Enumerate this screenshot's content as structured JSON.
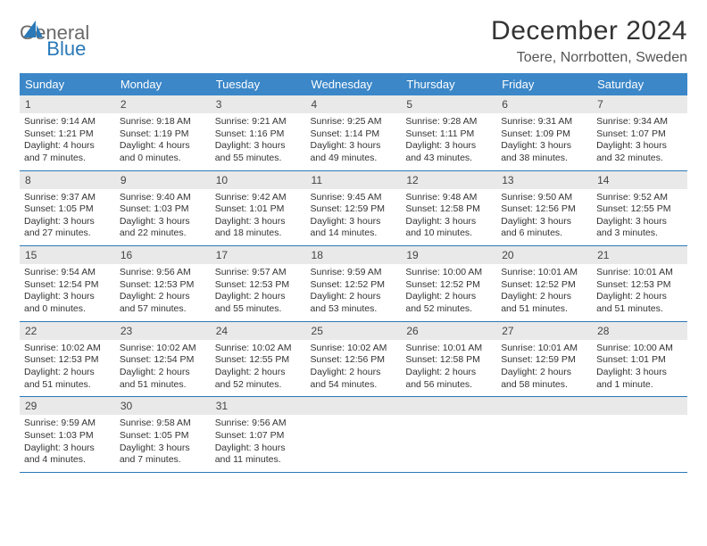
{
  "brand": {
    "word1": "General",
    "word2": "Blue"
  },
  "header": {
    "month_title": "December 2024",
    "location": "Toere, Norrbotten, Sweden"
  },
  "colors": {
    "header_bg": "#3b87c8",
    "header_fg": "#ffffff",
    "row_divider": "#2a79b8",
    "daynum_bg": "#e9e9e9",
    "text": "#333333",
    "logo_gray": "#6a6a6a",
    "logo_blue": "#2a79b8"
  },
  "day_labels": [
    "Sunday",
    "Monday",
    "Tuesday",
    "Wednesday",
    "Thursday",
    "Friday",
    "Saturday"
  ],
  "weeks": [
    [
      {
        "n": "1",
        "sr": "9:14 AM",
        "ss": "1:21 PM",
        "dl": "4 hours and 7 minutes."
      },
      {
        "n": "2",
        "sr": "9:18 AM",
        "ss": "1:19 PM",
        "dl": "4 hours and 0 minutes."
      },
      {
        "n": "3",
        "sr": "9:21 AM",
        "ss": "1:16 PM",
        "dl": "3 hours and 55 minutes."
      },
      {
        "n": "4",
        "sr": "9:25 AM",
        "ss": "1:14 PM",
        "dl": "3 hours and 49 minutes."
      },
      {
        "n": "5",
        "sr": "9:28 AM",
        "ss": "1:11 PM",
        "dl": "3 hours and 43 minutes."
      },
      {
        "n": "6",
        "sr": "9:31 AM",
        "ss": "1:09 PM",
        "dl": "3 hours and 38 minutes."
      },
      {
        "n": "7",
        "sr": "9:34 AM",
        "ss": "1:07 PM",
        "dl": "3 hours and 32 minutes."
      }
    ],
    [
      {
        "n": "8",
        "sr": "9:37 AM",
        "ss": "1:05 PM",
        "dl": "3 hours and 27 minutes."
      },
      {
        "n": "9",
        "sr": "9:40 AM",
        "ss": "1:03 PM",
        "dl": "3 hours and 22 minutes."
      },
      {
        "n": "10",
        "sr": "9:42 AM",
        "ss": "1:01 PM",
        "dl": "3 hours and 18 minutes."
      },
      {
        "n": "11",
        "sr": "9:45 AM",
        "ss": "12:59 PM",
        "dl": "3 hours and 14 minutes."
      },
      {
        "n": "12",
        "sr": "9:48 AM",
        "ss": "12:58 PM",
        "dl": "3 hours and 10 minutes."
      },
      {
        "n": "13",
        "sr": "9:50 AM",
        "ss": "12:56 PM",
        "dl": "3 hours and 6 minutes."
      },
      {
        "n": "14",
        "sr": "9:52 AM",
        "ss": "12:55 PM",
        "dl": "3 hours and 3 minutes."
      }
    ],
    [
      {
        "n": "15",
        "sr": "9:54 AM",
        "ss": "12:54 PM",
        "dl": "3 hours and 0 minutes."
      },
      {
        "n": "16",
        "sr": "9:56 AM",
        "ss": "12:53 PM",
        "dl": "2 hours and 57 minutes."
      },
      {
        "n": "17",
        "sr": "9:57 AM",
        "ss": "12:53 PM",
        "dl": "2 hours and 55 minutes."
      },
      {
        "n": "18",
        "sr": "9:59 AM",
        "ss": "12:52 PM",
        "dl": "2 hours and 53 minutes."
      },
      {
        "n": "19",
        "sr": "10:00 AM",
        "ss": "12:52 PM",
        "dl": "2 hours and 52 minutes."
      },
      {
        "n": "20",
        "sr": "10:01 AM",
        "ss": "12:52 PM",
        "dl": "2 hours and 51 minutes."
      },
      {
        "n": "21",
        "sr": "10:01 AM",
        "ss": "12:53 PM",
        "dl": "2 hours and 51 minutes."
      }
    ],
    [
      {
        "n": "22",
        "sr": "10:02 AM",
        "ss": "12:53 PM",
        "dl": "2 hours and 51 minutes."
      },
      {
        "n": "23",
        "sr": "10:02 AM",
        "ss": "12:54 PM",
        "dl": "2 hours and 51 minutes."
      },
      {
        "n": "24",
        "sr": "10:02 AM",
        "ss": "12:55 PM",
        "dl": "2 hours and 52 minutes."
      },
      {
        "n": "25",
        "sr": "10:02 AM",
        "ss": "12:56 PM",
        "dl": "2 hours and 54 minutes."
      },
      {
        "n": "26",
        "sr": "10:01 AM",
        "ss": "12:58 PM",
        "dl": "2 hours and 56 minutes."
      },
      {
        "n": "27",
        "sr": "10:01 AM",
        "ss": "12:59 PM",
        "dl": "2 hours and 58 minutes."
      },
      {
        "n": "28",
        "sr": "10:00 AM",
        "ss": "1:01 PM",
        "dl": "3 hours and 1 minute."
      }
    ],
    [
      {
        "n": "29",
        "sr": "9:59 AM",
        "ss": "1:03 PM",
        "dl": "3 hours and 4 minutes."
      },
      {
        "n": "30",
        "sr": "9:58 AM",
        "ss": "1:05 PM",
        "dl": "3 hours and 7 minutes."
      },
      {
        "n": "31",
        "sr": "9:56 AM",
        "ss": "1:07 PM",
        "dl": "3 hours and 11 minutes."
      },
      null,
      null,
      null,
      null
    ]
  ],
  "labels": {
    "sunrise_prefix": "Sunrise: ",
    "sunset_prefix": "Sunset: ",
    "daylight_prefix": "Daylight: "
  }
}
